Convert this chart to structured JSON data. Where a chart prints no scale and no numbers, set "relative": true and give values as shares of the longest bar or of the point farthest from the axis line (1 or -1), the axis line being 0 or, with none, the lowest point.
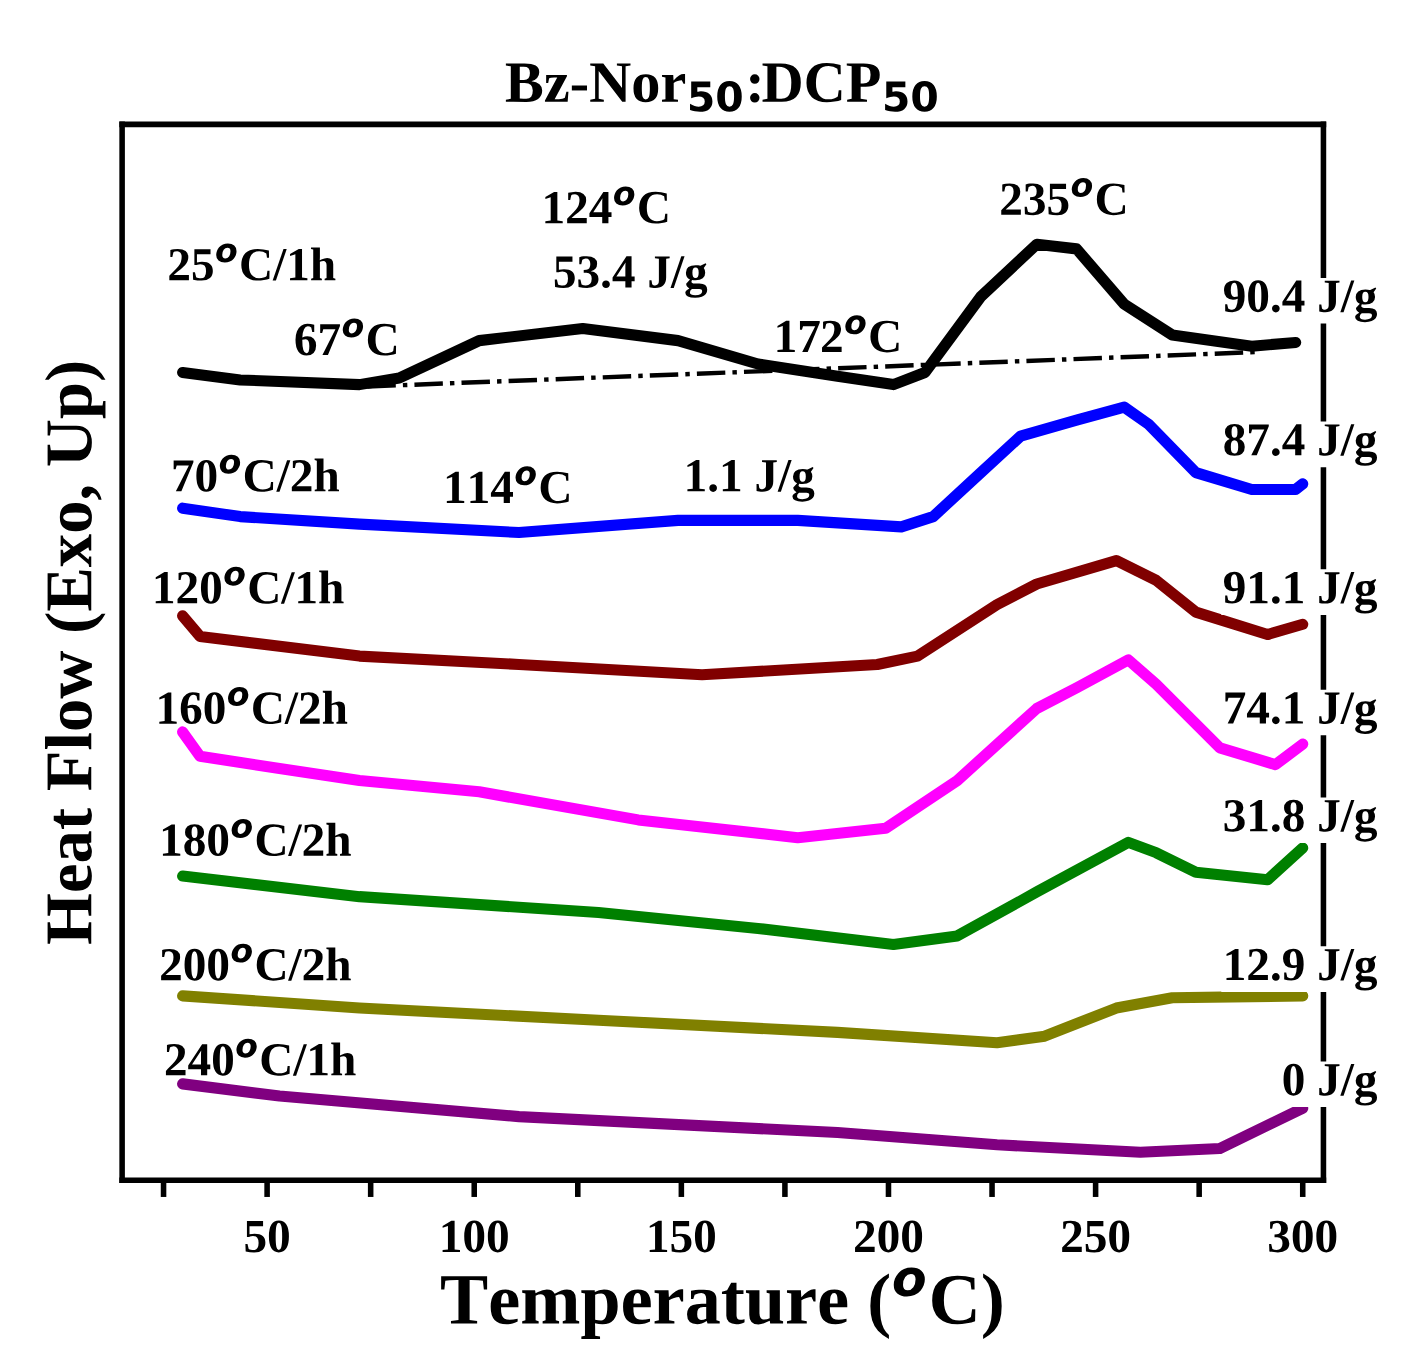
{
  "chart_data": {
    "type": "line",
    "title": "Bz-Nor$_{50}$:DCP$_{50}$",
    "xlabel": "Temperature ($^{o}$C)",
    "ylabel": "Heat Flow (Exo, Up)",
    "relative": true,
    "grid": false,
    "marker": "none",
    "line_style": "solid",
    "xlim": [
      15,
      305
    ],
    "xticks": [
      {
        "value": 25,
        "label": null
      },
      50,
      {
        "value": 75,
        "label": null
      },
      100,
      {
        "value": 125,
        "label": null
      },
      150,
      {
        "value": 175,
        "label": null
      },
      200,
      {
        "value": 225,
        "label": null
      },
      250,
      {
        "value": 275,
        "label": null
      },
      300
    ],
    "series": [
      {
        "color": "#000000",
        "x": [
          29.6,
          43.5,
          72.3,
          81.9,
          101.2,
          126.2,
          149.2,
          168.5,
          187.7,
          201.2,
          208.8,
          222.3,
          235.8,
          245.4,
          256.9,
          268.5,
          287.7,
          298.3
        ],
        "values": [
          0.863,
          0.855,
          0.85,
          0.857,
          0.897,
          0.91,
          0.897,
          0.872,
          0.859,
          0.85,
          0.863,
          0.944,
          1.0,
          0.995,
          0.936,
          0.903,
          0.891,
          0.895
        ]
      },
      {
        "color": "#000000",
        "line_style": "dashdot",
        "x": [
          74.2,
          290
        ],
        "values": [
          0.848,
          0.885
        ]
      },
      {
        "color": "#0000ff",
        "x": [
          29.6,
          43.5,
          72.3,
          110.8,
          149.2,
          178.1,
          203.1,
          210.8,
          222.3,
          231.9,
          245.4,
          256.9,
          262.7,
          274.2,
          287.7,
          298.3,
          300
        ],
        "values": [
          0.718,
          0.709,
          0.701,
          0.692,
          0.705,
          0.705,
          0.698,
          0.709,
          0.756,
          0.795,
          0.812,
          0.826,
          0.808,
          0.756,
          0.738,
          0.738,
          0.744
        ]
      },
      {
        "color": "#800000",
        "x": [
          29.6,
          33.8,
          72.3,
          110.8,
          155,
          197.3,
          207,
          226.2,
          235.8,
          255,
          264.6,
          274.2,
          291.5,
          300
        ],
        "values": [
          0.603,
          0.581,
          0.56,
          0.551,
          0.54,
          0.551,
          0.56,
          0.615,
          0.637,
          0.662,
          0.641,
          0.607,
          0.583,
          0.594
        ]
      },
      {
        "color": "#ff00ff",
        "x": [
          29.6,
          33.8,
          53,
          72.3,
          101.2,
          139.6,
          178.1,
          199.3,
          216.6,
          235.8,
          245.4,
          257.9,
          264.6,
          280,
          293.4,
          300
        ],
        "values": [
          0.479,
          0.453,
          0.44,
          0.427,
          0.415,
          0.385,
          0.366,
          0.376,
          0.427,
          0.504,
          0.526,
          0.556,
          0.53,
          0.462,
          0.444,
          0.466
        ]
      },
      {
        "color": "#008000",
        "x": [
          29.6,
          72.3,
          130,
          168.5,
          201.2,
          216.6,
          235.8,
          257.9,
          264.6,
          274.2,
          291.5,
          300
        ],
        "values": [
          0.325,
          0.303,
          0.286,
          0.269,
          0.252,
          0.261,
          0.308,
          0.361,
          0.35,
          0.329,
          0.321,
          0.355
        ]
      },
      {
        "color": "#808000",
        "x": [
          29.6,
          72.3,
          130,
          187.7,
          226.2,
          237.7,
          255,
          268.5,
          300
        ],
        "values": [
          0.197,
          0.184,
          0.171,
          0.158,
          0.147,
          0.154,
          0.184,
          0.195,
          0.197
        ]
      },
      {
        "color": "#800080",
        "x": [
          29.6,
          53,
          110.8,
          187.7,
          226.2,
          260.8,
          280,
          300
        ],
        "values": [
          0.103,
          0.09,
          0.068,
          0.051,
          0.038,
          0.03,
          0.034,
          0.077
        ]
      }
    ],
    "annotations": [
      "25$^{o}$C/1h",
      "67$^{o}$C",
      "124$^{o}$C",
      "53.4 J/g",
      "172$^{o}$C",
      "235$^{o}$C",
      "90.4 J/g",
      "70$^{o}$C/2h",
      "114$^{o}$C",
      "1.1 J/g",
      "87.4 J/g",
      "120$^{o}$C/1h",
      "91.1 J/g",
      "160$^{o}$C/2h",
      "74.1 J/g",
      "180$^{o}$C/2h",
      "31.8 J/g",
      "200$^{o}$C/2h",
      "12.9 J/g",
      "240$^{o}$C/1h",
      "0 J/g"
    ]
  }
}
